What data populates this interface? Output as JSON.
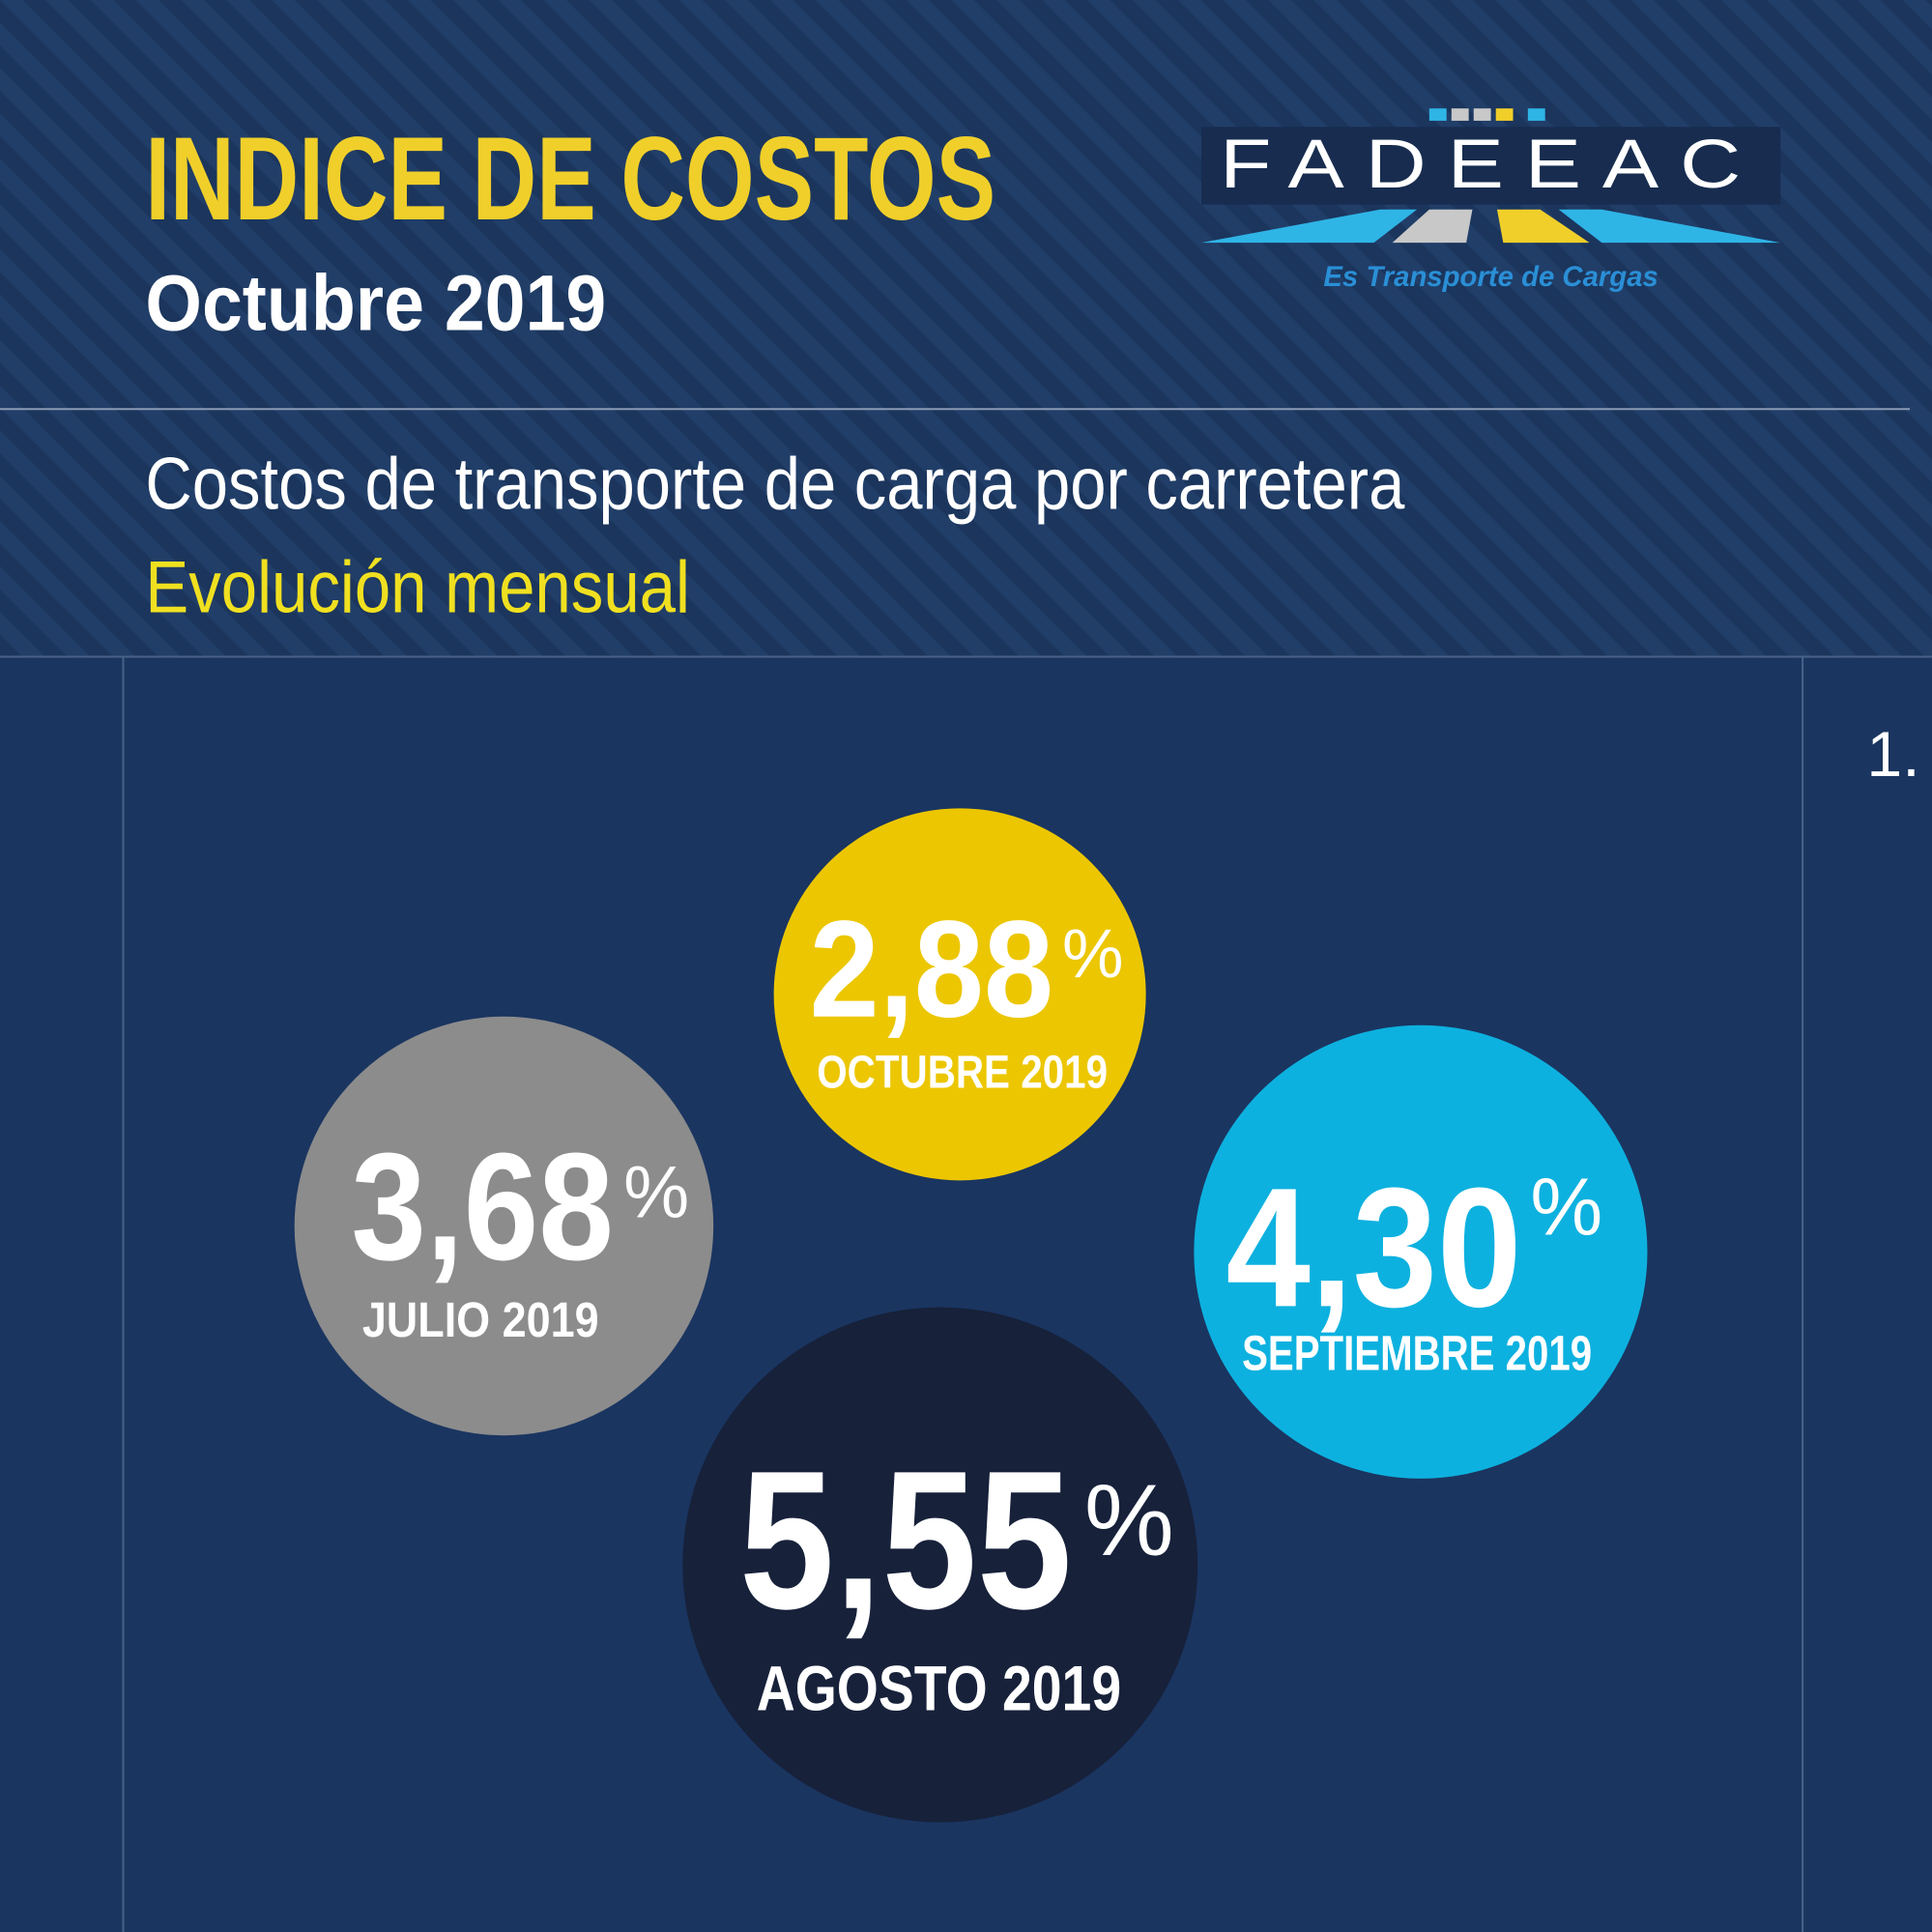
{
  "header": {
    "title": "INDICE DE COSTOS",
    "subtitle": "Octubre 2019"
  },
  "logo": {
    "name": "FADEEAC",
    "tagline": "Es Transporte de Cargas"
  },
  "section": {
    "title": "Costos de transporte de carga por carretera",
    "subtitle": "Evolución mensual",
    "marker": "1."
  },
  "bubbles": [
    {
      "value": "2,88",
      "unit": "%",
      "label": "OCTUBRE 2019"
    },
    {
      "value": "3,68",
      "unit": "%",
      "label": "JULIO 2019"
    },
    {
      "value": "4,30",
      "unit": "%",
      "label": "SEPTIEMBRE 2019"
    },
    {
      "value": "5,55",
      "unit": "%",
      "label": "AGOSTO 2019"
    }
  ]
}
